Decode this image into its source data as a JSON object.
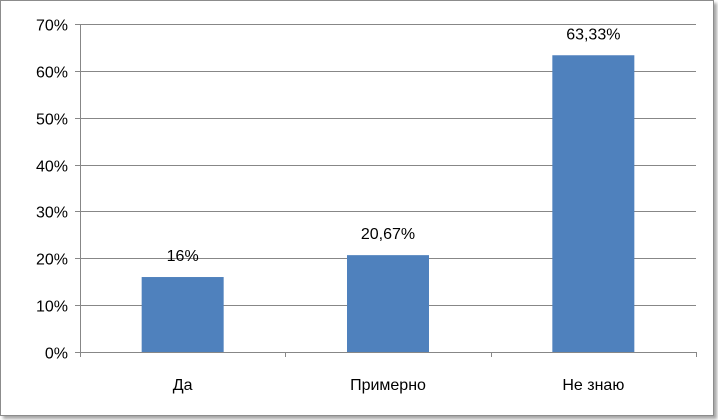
{
  "chart_data": {
    "type": "bar",
    "categories": [
      "Да",
      "Примерно",
      "Не знаю"
    ],
    "values": [
      16,
      20.67,
      63.33
    ],
    "data_labels": [
      "16%",
      "20,67%",
      "63,33%"
    ],
    "ylim": [
      0,
      70
    ],
    "yticks": [
      0,
      10,
      20,
      30,
      40,
      50,
      60,
      70
    ],
    "ytick_labels": [
      "0%",
      "10%",
      "20%",
      "30%",
      "40%",
      "50%",
      "60%",
      "70%"
    ],
    "grid": true,
    "legend": "none",
    "bar_color": "#4f81bd"
  }
}
